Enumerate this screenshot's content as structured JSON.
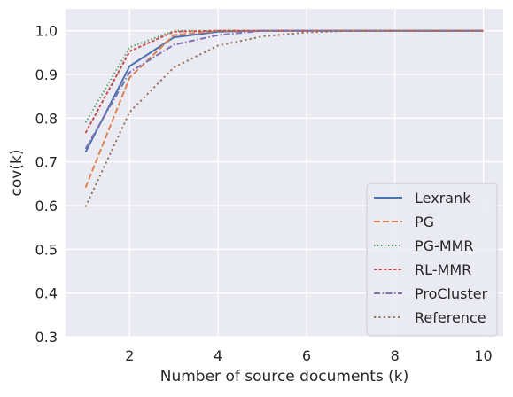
{
  "chart_data": {
    "type": "line",
    "xlabel": "Number of source documents (k)",
    "ylabel": "cov(k)",
    "xlim": [
      0.55,
      10.45
    ],
    "ylim": [
      0.3,
      1.05
    ],
    "xticks": [
      2,
      4,
      6,
      8,
      10
    ],
    "xtick_labels": [
      "2",
      "4",
      "6",
      "8",
      "10"
    ],
    "yticks": [
      0.3,
      0.4,
      0.5,
      0.6,
      0.7,
      0.8,
      0.9,
      1.0
    ],
    "ytick_labels": [
      "0.3",
      "0.4",
      "0.5",
      "0.6",
      "0.7",
      "0.8",
      "0.9",
      "1.0"
    ],
    "grid": true,
    "background": "#eaeaf2",
    "legend_position": "lower-right",
    "x": [
      1,
      2,
      3,
      4,
      5,
      6,
      7,
      8,
      9,
      10
    ],
    "series": [
      {
        "name": "Lexrank",
        "color": "#4c72b0",
        "dash": "solid",
        "values": [
          0.722,
          0.919,
          0.985,
          0.998,
          1.0,
          1.0,
          1.0,
          1.0,
          1.0,
          1.0
        ]
      },
      {
        "name": "PG",
        "color": "#dd8452",
        "dash": "dashed",
        "values": [
          0.641,
          0.893,
          0.99,
          1.0,
          1.0,
          1.0,
          1.0,
          1.0,
          1.0,
          1.0
        ]
      },
      {
        "name": "PG-MMR",
        "color": "#55a868",
        "dash": "dotted",
        "values": [
          0.79,
          0.962,
          1.0,
          1.0,
          1.0,
          1.0,
          1.0,
          1.0,
          1.0,
          1.0
        ]
      },
      {
        "name": "RL-MMR",
        "color": "#c44e52",
        "dash": "densedash",
        "values": [
          0.766,
          0.953,
          0.998,
          1.0,
          1.0,
          1.0,
          1.0,
          1.0,
          1.0,
          1.0
        ]
      },
      {
        "name": "ProCluster",
        "color": "#8172b3",
        "dash": "dashdot",
        "values": [
          0.73,
          0.905,
          0.968,
          0.99,
          1.0,
          1.0,
          1.0,
          1.0,
          1.0,
          1.0
        ]
      },
      {
        "name": "Reference",
        "color": "#937860",
        "dash": "loosedot",
        "values": [
          0.597,
          0.814,
          0.916,
          0.966,
          0.987,
          0.996,
          1.0,
          1.0,
          1.0,
          1.0
        ]
      }
    ]
  }
}
